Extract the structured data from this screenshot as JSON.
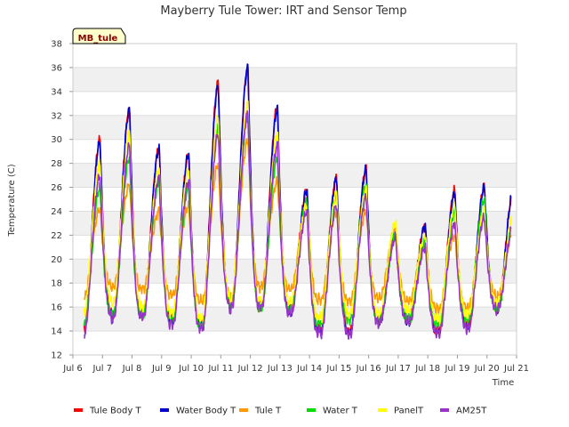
{
  "chart_data": {
    "type": "line",
    "title": "Mayberry Tule Tower: IRT and Sensor Temp",
    "xlabel": "Time",
    "ylabel": "Temperature (C)",
    "annotation": "MB_tule",
    "xlim": [
      6,
      21
    ],
    "ylim": [
      12,
      38
    ],
    "x_ticks": [
      6,
      7,
      8,
      9,
      10,
      11,
      12,
      13,
      14,
      15,
      16,
      17,
      18,
      19,
      20,
      21
    ],
    "x_tick_labels": [
      "Jul 6",
      "Jul 7",
      "Jul 8",
      "Jul 9",
      "Jul 10",
      "Jul 11",
      "Jul 12",
      "Jul 13",
      "Jul 14",
      "Jul 15",
      "Jul 16",
      "Jul 17",
      "Jul 18",
      "Jul 19",
      "Jul 20",
      "Jul 21"
    ],
    "y_ticks": [
      12,
      14,
      16,
      18,
      20,
      22,
      24,
      26,
      28,
      30,
      32,
      34,
      36,
      38
    ],
    "grid": true,
    "legend_position": "bottom",
    "days": [
      6.3,
      7.3,
      8.3,
      9.3,
      10.3,
      11.3,
      12.3,
      13.3,
      14.3,
      15.3,
      16.3,
      17.3,
      18.3,
      19.3,
      20.3
    ],
    "series": [
      {
        "name": "Tule Body T",
        "color": "#ff0000",
        "lows": [
          14.0,
          15.5,
          15.5,
          15.0,
          14.5,
          16.5,
          16.0,
          15.8,
          14.0,
          14.0,
          15.0,
          15.0,
          14.0,
          14.5,
          16.0
        ],
        "highs": [
          30.0,
          32.5,
          29.3,
          28.7,
          34.8,
          36.0,
          32.8,
          25.8,
          26.8,
          27.5,
          22.0,
          22.8,
          25.8,
          26.0,
          26.0
        ]
      },
      {
        "name": "Water Body T",
        "color": "#0000cc",
        "lows": [
          13.8,
          15.3,
          15.3,
          14.8,
          14.3,
          16.3,
          16.0,
          15.5,
          13.8,
          13.8,
          14.8,
          14.8,
          13.8,
          14.3,
          16.0
        ],
        "highs": [
          29.8,
          32.5,
          29.3,
          28.8,
          34.5,
          36.0,
          32.5,
          25.8,
          26.8,
          27.5,
          22.0,
          22.8,
          25.5,
          26.0,
          26.0
        ]
      },
      {
        "name": "Tule T",
        "color": "#ff9900",
        "lows": [
          16.8,
          17.8,
          17.5,
          17.0,
          16.5,
          17.0,
          17.8,
          17.5,
          16.5,
          16.5,
          16.8,
          16.5,
          15.8,
          16.0,
          17.0
        ],
        "highs": [
          24.2,
          26.2,
          24.0,
          24.5,
          28.0,
          30.0,
          26.5,
          24.5,
          24.0,
          24.0,
          22.5,
          21.5,
          22.0,
          23.5,
          22.5
        ]
      },
      {
        "name": "Water T",
        "color": "#00dd00",
        "lows": [
          14.5,
          15.5,
          15.5,
          15.0,
          14.5,
          16.5,
          16.0,
          15.8,
          14.5,
          15.0,
          15.0,
          15.0,
          14.5,
          15.0,
          16.0
        ],
        "highs": [
          26.0,
          28.5,
          26.5,
          26.0,
          31.0,
          32.0,
          28.5,
          24.8,
          25.5,
          26.2,
          22.0,
          21.5,
          24.0,
          25.0,
          23.5
        ]
      },
      {
        "name": "PanelT",
        "color": "#ffff00",
        "lows": [
          15.5,
          16.5,
          16.0,
          15.5,
          15.0,
          17.0,
          16.5,
          16.5,
          15.0,
          15.5,
          15.5,
          15.8,
          15.0,
          15.5,
          16.5
        ],
        "highs": [
          28.0,
          30.5,
          27.5,
          27.5,
          31.8,
          33.0,
          30.5,
          24.5,
          25.5,
          25.8,
          23.0,
          22.0,
          24.5,
          24.0,
          24.0
        ]
      },
      {
        "name": "AM25T",
        "color": "#9933cc",
        "lows": [
          13.7,
          15.3,
          15.2,
          14.5,
          14.2,
          16.2,
          16.0,
          15.5,
          13.7,
          13.8,
          14.8,
          14.8,
          13.8,
          14.3,
          16.0
        ],
        "highs": [
          27.0,
          29.5,
          26.8,
          26.5,
          30.5,
          32.2,
          29.5,
          24.0,
          24.5,
          25.2,
          21.8,
          21.0,
          23.0,
          23.5,
          23.0
        ]
      }
    ]
  }
}
